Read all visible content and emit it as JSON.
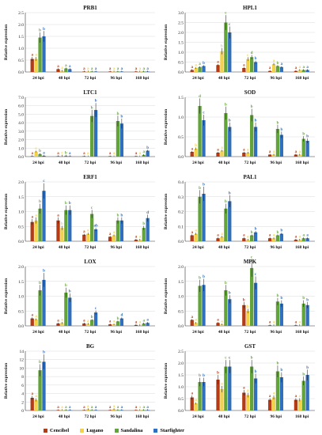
{
  "colors": {
    "Cencibel": "#b33b16",
    "Lugano": "#f2d24a",
    "Sandalina": "#62a43a",
    "Starfighter": "#2f6fbd",
    "axis": "#333333",
    "grid": "#d9d9d9"
  },
  "legend": [
    "Cencibel",
    "Lugano",
    "Sandalina",
    "Starfighter"
  ],
  "chart_data": [
    {
      "type": "bar",
      "title": "PRB1",
      "ylabel": "Relative expression",
      "categories": [
        "24 hpi",
        "48 hpi",
        "72 hpi",
        "96 hpi",
        "168 hpi"
      ],
      "ylim": [
        0,
        2.5
      ],
      "yticks": [
        "0.0",
        "0.5",
        "1.0",
        "1.5",
        "2.0",
        "2.5"
      ],
      "series": [
        {
          "name": "Cencibel",
          "values": [
            0.55,
            0.12,
            0.02,
            0.02,
            0.02
          ],
          "letters": [
            "a",
            "a",
            "a",
            "a",
            "a"
          ]
        },
        {
          "name": "Lugano",
          "values": [
            0.55,
            0.05,
            0.02,
            0.02,
            0.02
          ],
          "letters": [
            "a",
            "a",
            "a",
            "a",
            "a"
          ]
        },
        {
          "name": "Sandalina",
          "values": [
            1.45,
            0.15,
            0.02,
            0.02,
            0.02
          ],
          "letters": [
            "b",
            "a",
            "a",
            "a",
            "a"
          ]
        },
        {
          "name": "Starfighter",
          "values": [
            1.5,
            0.12,
            0.02,
            0.02,
            0.02
          ],
          "letters": [
            "b",
            "a",
            "a",
            "a",
            "a"
          ]
        }
      ]
    },
    {
      "type": "bar",
      "title": "HPL1",
      "ylabel": "Relative expression",
      "categories": [
        "24 hpi",
        "48 hpi",
        "72 hpi",
        "96 hpi",
        "168 hpi"
      ],
      "ylim": [
        0,
        3.0
      ],
      "yticks": [
        "0.0",
        "0.5",
        "1.0",
        "1.5",
        "2.0",
        "2.5",
        "3.0"
      ],
      "series": [
        {
          "name": "Cencibel",
          "values": [
            0.1,
            0.35,
            0.2,
            0.05,
            0.05
          ],
          "letters": [
            "a",
            "a",
            "a",
            "a",
            "a"
          ]
        },
        {
          "name": "Lugano",
          "values": [
            0.2,
            1.05,
            0.65,
            0.4,
            0.1
          ],
          "letters": [
            "a",
            "b",
            "c",
            "a",
            "a"
          ]
        },
        {
          "name": "Sandalina",
          "values": [
            0.25,
            2.5,
            0.75,
            0.3,
            0.1
          ],
          "letters": [
            "a",
            "c",
            "d",
            "b",
            "a"
          ]
        },
        {
          "name": "Starfighter",
          "values": [
            0.3,
            2.0,
            0.5,
            0.25,
            0.1
          ],
          "letters": [
            "b",
            "c",
            "b",
            "a",
            "a"
          ]
        }
      ]
    },
    {
      "type": "bar",
      "title": "LTC1",
      "ylabel": "Relative expression",
      "categories": [
        "24 hpi",
        "48 hpi",
        "72 hpi",
        "96 hpi",
        "168 hpi"
      ],
      "ylim": [
        0,
        7.0
      ],
      "yticks": [
        "0.0",
        "1.0",
        "2.0",
        "3.0",
        "4.0",
        "5.0",
        "6.0",
        "7.0"
      ],
      "series": [
        {
          "name": "Cencibel",
          "values": [
            0.05,
            0.05,
            0.02,
            0.02,
            0.02
          ],
          "letters": [
            "a",
            "a",
            "a",
            "a",
            "a"
          ]
        },
        {
          "name": "Lugano",
          "values": [
            0.6,
            0.1,
            0.02,
            0.02,
            0.02
          ],
          "letters": [
            "c",
            "c",
            "a",
            "a",
            "a"
          ]
        },
        {
          "name": "Sandalina",
          "values": [
            0.3,
            0.1,
            4.8,
            4.2,
            0.2
          ],
          "letters": [
            "b",
            "b",
            "b",
            "b",
            "a"
          ]
        },
        {
          "name": "Starfighter",
          "values": [
            0.1,
            0.05,
            5.5,
            3.9,
            0.7
          ],
          "letters": [
            "a",
            "a",
            "b",
            "b",
            "b"
          ]
        }
      ]
    },
    {
      "type": "bar",
      "title": "SOD",
      "ylabel": "Relative expression",
      "categories": [
        "24 hpi",
        "48 hpi",
        "72 hpi",
        "96 hpi",
        "168 hpi"
      ],
      "ylim": [
        0,
        1.5
      ],
      "yticks": [
        "0.0",
        "0.5",
        "1.0",
        "1.5"
      ],
      "series": [
        {
          "name": "Cencibel",
          "values": [
            0.12,
            0.1,
            0.1,
            0.05,
            0.05
          ],
          "letters": [
            "a",
            "a",
            "a",
            "a",
            "a"
          ]
        },
        {
          "name": "Lugano",
          "values": [
            0.2,
            0.15,
            0.1,
            0.05,
            0.05
          ],
          "letters": [
            "b",
            "a",
            "a",
            "a",
            "a"
          ]
        },
        {
          "name": "Sandalina",
          "values": [
            1.28,
            1.1,
            1.05,
            0.7,
            0.45
          ],
          "letters": [
            "d",
            "b",
            "b",
            "b",
            "b"
          ]
        },
        {
          "name": "Starfighter",
          "values": [
            0.92,
            0.75,
            0.75,
            0.55,
            0.4
          ],
          "letters": [
            "c",
            "b",
            "b",
            "b",
            "b"
          ]
        }
      ]
    },
    {
      "type": "bar",
      "title": "ERF1",
      "ylabel": "Relative expression",
      "categories": [
        "24 hpi",
        "48 hpi",
        "72 hpi",
        "96 hpi",
        "168 hpi"
      ],
      "ylim": [
        0,
        2.0
      ],
      "yticks": [
        "0.0",
        "0.5",
        "1.0",
        "1.5",
        "2.0"
      ],
      "series": [
        {
          "name": "Cencibel",
          "values": [
            0.65,
            0.7,
            0.22,
            0.15,
            0.05
          ],
          "letters": [
            "a",
            "a",
            "a",
            "a",
            "a"
          ]
        },
        {
          "name": "Lugano",
          "values": [
            0.7,
            0.45,
            0.25,
            0.2,
            0.05
          ],
          "letters": [
            "a",
            "b",
            "a",
            "a",
            "a"
          ]
        },
        {
          "name": "Sandalina",
          "values": [
            1.1,
            1.05,
            0.92,
            0.7,
            0.45
          ],
          "letters": [
            "b",
            "b",
            "c",
            "b",
            "b"
          ]
        },
        {
          "name": "Starfighter",
          "values": [
            1.7,
            1.05,
            0.4,
            0.7,
            0.78
          ],
          "letters": [
            "c",
            "b",
            "ab",
            "b",
            "d"
          ]
        }
      ]
    },
    {
      "type": "bar",
      "title": "PAL1",
      "ylabel": "Relative expression",
      "categories": [
        "24 hpi",
        "48 hpi",
        "72 hpi",
        "96 hpi",
        "168 hpi"
      ],
      "ylim": [
        0,
        0.4
      ],
      "yticks": [
        "0.0",
        "0.1",
        "0.2",
        "0.3",
        "0.4"
      ],
      "series": [
        {
          "name": "Cencibel",
          "values": [
            0.04,
            0.02,
            0.02,
            0.02,
            0.01
          ],
          "letters": [
            "a",
            "a",
            "a",
            "a",
            "a"
          ]
        },
        {
          "name": "Lugano",
          "values": [
            0.05,
            0.03,
            0.01,
            0.02,
            0.01
          ],
          "letters": [
            "a",
            "a",
            "a",
            "a",
            "a"
          ]
        },
        {
          "name": "Sandalina",
          "values": [
            0.3,
            0.22,
            0.04,
            0.04,
            0.02
          ],
          "letters": [
            "b",
            "b",
            "b",
            "b",
            "a"
          ]
        },
        {
          "name": "Starfighter",
          "values": [
            0.32,
            0.27,
            0.06,
            0.05,
            0.02
          ],
          "letters": [
            "b",
            "b",
            "b",
            "b",
            "a"
          ]
        }
      ]
    },
    {
      "type": "bar",
      "title": "LOX",
      "ylabel": "Relative expression",
      "categories": [
        "24 hpi",
        "48 hpi",
        "72 hpi",
        "96 hpi",
        "168 hpi"
      ],
      "ylim": [
        0,
        2.0
      ],
      "yticks": [
        "0.0",
        "0.5",
        "1.0",
        "1.5",
        "2.0"
      ],
      "series": [
        {
          "name": "Cencibel",
          "values": [
            0.25,
            0.08,
            0.08,
            0.05,
            0.03
          ],
          "letters": [
            "a",
            "a",
            "a",
            "a",
            "a"
          ]
        },
        {
          "name": "Lugano",
          "values": [
            0.22,
            0.1,
            0.07,
            0.05,
            0.03
          ],
          "letters": [
            "a",
            "a",
            "a",
            "a",
            "a"
          ]
        },
        {
          "name": "Sandalina",
          "values": [
            1.2,
            1.12,
            0.2,
            0.15,
            0.08
          ],
          "letters": [
            "b",
            "b",
            "b",
            "b",
            "a"
          ]
        },
        {
          "name": "Starfighter",
          "values": [
            1.55,
            0.95,
            0.45,
            0.25,
            0.1
          ],
          "letters": [
            "b",
            "b",
            "c",
            "d",
            "a"
          ]
        }
      ]
    },
    {
      "type": "bar",
      "title": "MPK",
      "ylabel": "Relative expression",
      "categories": [
        "24 hpi",
        "48 hpi",
        "72 hpi",
        "96 hpi",
        "168 hpi"
      ],
      "ylim": [
        0,
        2.0
      ],
      "yticks": [
        "0.0",
        "0.5",
        "1.0",
        "1.5",
        "2.0"
      ],
      "series": [
        {
          "name": "Cencibel",
          "values": [
            0.2,
            0.1,
            0.7,
            0.02,
            0.02
          ],
          "letters": [
            "a",
            "a",
            "b",
            "a",
            "a"
          ]
        },
        {
          "name": "Lugano",
          "values": [
            0.1,
            0.05,
            0.5,
            0.02,
            0.02
          ],
          "letters": [
            "a",
            "a",
            "b",
            "a",
            "a"
          ]
        },
        {
          "name": "Sandalina",
          "values": [
            1.35,
            1.2,
            1.95,
            0.82,
            0.75
          ],
          "letters": [
            "b",
            "b",
            "c",
            "b",
            "b"
          ]
        },
        {
          "name": "Starfighter",
          "values": [
            1.38,
            0.9,
            1.45,
            0.75,
            0.7
          ],
          "letters": [
            "b",
            "b",
            "c",
            "b",
            "b"
          ]
        }
      ]
    },
    {
      "type": "bar",
      "title": "BG",
      "ylabel": "Relative expression",
      "categories": [
        "24 hpi",
        "48 hpi",
        "72 hpi",
        "96 hpi",
        "168 hpi"
      ],
      "ylim": [
        0,
        14
      ],
      "yticks": [
        "0",
        "2",
        "4",
        "6",
        "8",
        "10",
        "12",
        "14"
      ],
      "series": [
        {
          "name": "Cencibel",
          "values": [
            3.0,
            0.05,
            0.05,
            0.05,
            0.05
          ],
          "letters": [
            "a",
            "a",
            "a",
            "a",
            "a"
          ]
        },
        {
          "name": "Lugano",
          "values": [
            2.5,
            0.1,
            0.3,
            0.3,
            0.1
          ],
          "letters": [
            "a",
            "a",
            "a",
            "a",
            "a"
          ]
        },
        {
          "name": "Sandalina",
          "values": [
            9.5,
            0.1,
            0.1,
            0.1,
            0.1
          ],
          "letters": [
            "b",
            "a",
            "a",
            "a",
            "a"
          ]
        },
        {
          "name": "Starfighter",
          "values": [
            11.5,
            0.1,
            0.1,
            0.1,
            0.1
          ],
          "letters": [
            "b",
            "a",
            "a",
            "a",
            "a"
          ]
        }
      ]
    },
    {
      "type": "bar",
      "title": "GST",
      "ylabel": "Relative expression",
      "categories": [
        "24 hpi",
        "48 hpi",
        "72 hpi",
        "96 hpi",
        "168 hpi"
      ],
      "ylim": [
        0,
        2.5
      ],
      "yticks": [
        "0.0",
        "0.5",
        "1.0",
        "1.5",
        "2.0",
        "2.5"
      ],
      "series": [
        {
          "name": "Cencibel",
          "values": [
            0.55,
            1.3,
            0.75,
            0.45,
            0.45
          ],
          "letters": [
            "a",
            "b",
            "a",
            "a",
            "a"
          ]
        },
        {
          "name": "Lugano",
          "values": [
            0.3,
            0.9,
            0.65,
            0.55,
            0.45
          ],
          "letters": [
            "a",
            "a",
            "a",
            "a",
            "a"
          ]
        },
        {
          "name": "Sandalina",
          "values": [
            1.2,
            1.85,
            1.85,
            1.65,
            1.25
          ],
          "letters": [
            "b",
            "c",
            "b",
            "b",
            "b"
          ]
        },
        {
          "name": "Starfighter",
          "values": [
            1.2,
            1.85,
            1.35,
            1.4,
            1.5
          ],
          "letters": [
            "b",
            "c",
            "b",
            "b",
            "b"
          ]
        }
      ]
    }
  ]
}
